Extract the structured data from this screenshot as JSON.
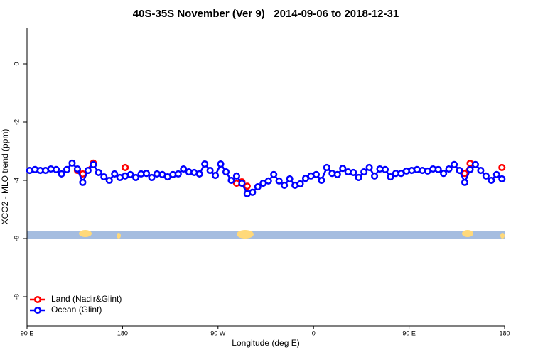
{
  "chart_data": {
    "type": "line",
    "title": "40S-35S November (Ver 9)   2014-09-06 to 2018-12-31",
    "x_label": "Longitude (deg E)",
    "y_label": "XCO2 - MLO trend (ppm)",
    "xlim": [
      90,
      540
    ],
    "ylim": [
      -9,
      1.2
    ],
    "xticks": [
      {
        "value": 90,
        "label": "90 E"
      },
      {
        "value": 180,
        "label": "180"
      },
      {
        "value": 270,
        "label": "90 W"
      },
      {
        "value": 360,
        "label": "0"
      },
      {
        "value": 450,
        "label": "90 E"
      },
      {
        "value": 540,
        "label": "180"
      }
    ],
    "yticks": [
      -8,
      -6,
      -4,
      -2,
      0
    ],
    "legend": "bottom-left",
    "series": [
      {
        "name": "Land (Nadir&Glint)",
        "color": "#ff0000",
        "x": [
          137.5,
          142.5,
          152.5,
          167.5,
          182.5,
          282.5,
          287.5,
          292.5,
          297.5,
          500,
          502.5,
          507.5,
          520,
          537.5
        ],
        "values": [
          -3.66,
          -3.78,
          -3.41,
          null,
          -3.56,
          null,
          -4.1,
          -4.05,
          -4.2,
          null,
          -3.76,
          -3.42,
          null,
          -3.56
        ]
      },
      {
        "name": "Ocean (Glint)",
        "color": "#0000ff",
        "x": [
          92.5,
          97.5,
          102.5,
          107.5,
          112.5,
          117.5,
          122.5,
          127.5,
          132.5,
          137.5,
          142.5,
          147.5,
          152.5,
          157.5,
          162.5,
          167.5,
          172.5,
          177.5,
          182.5,
          187.5,
          192.5,
          197.5,
          202.5,
          207.5,
          212.5,
          217.5,
          222.5,
          227.5,
          232.5,
          237.5,
          242.5,
          247.5,
          252.5,
          257.5,
          262.5,
          267.5,
          272.5,
          277.5,
          282.5,
          287.5,
          292.5,
          297.5,
          302.5,
          307.5,
          312.5,
          317.5,
          322.5,
          327.5,
          332.5,
          337.5,
          342.5,
          347.5,
          352.5,
          357.5,
          362.5,
          367.5,
          372.5,
          377.5,
          382.5,
          387.5,
          392.5,
          397.5,
          402.5,
          407.5,
          412.5,
          417.5,
          422.5,
          427.5,
          432.5,
          437.5,
          442.5,
          447.5,
          452.5,
          457.5,
          462.5,
          467.5,
          472.5,
          477.5,
          482.5,
          487.5,
          492.5,
          497.5,
          502.5,
          507.5,
          512.5,
          517.5,
          522.5,
          527.5,
          532.5,
          537.5
        ],
        "values": [
          -3.66,
          -3.63,
          -3.66,
          -3.66,
          -3.61,
          -3.63,
          -3.78,
          -3.63,
          -3.41,
          -3.61,
          -4.07,
          -3.66,
          -3.46,
          -3.73,
          -3.88,
          -4.0,
          -3.78,
          -3.9,
          -3.85,
          -3.8,
          -3.9,
          -3.78,
          -3.76,
          -3.9,
          -3.78,
          -3.8,
          -3.88,
          -3.8,
          -3.78,
          -3.61,
          -3.71,
          -3.73,
          -3.78,
          -3.44,
          -3.66,
          -3.83,
          -3.44,
          -3.71,
          -4.0,
          -3.85,
          -4.1,
          -4.46,
          -4.41,
          -4.22,
          -4.1,
          -4.02,
          -3.8,
          -4.02,
          -4.17,
          -3.95,
          -4.17,
          -4.12,
          -3.93,
          -3.85,
          -3.8,
          -4.0,
          -3.56,
          -3.76,
          -3.8,
          -3.59,
          -3.71,
          -3.73,
          -3.9,
          -3.71,
          -3.56,
          -3.85,
          -3.61,
          -3.63,
          -3.88,
          -3.76,
          -3.76,
          -3.68,
          -3.66,
          -3.63,
          -3.66,
          -3.68,
          -3.61,
          -3.63,
          -3.76,
          -3.61,
          -3.46,
          -3.66,
          -4.07,
          -3.63,
          -3.46,
          -3.66,
          -3.85,
          -4.0,
          -3.8,
          -3.95
        ]
      }
    ]
  }
}
